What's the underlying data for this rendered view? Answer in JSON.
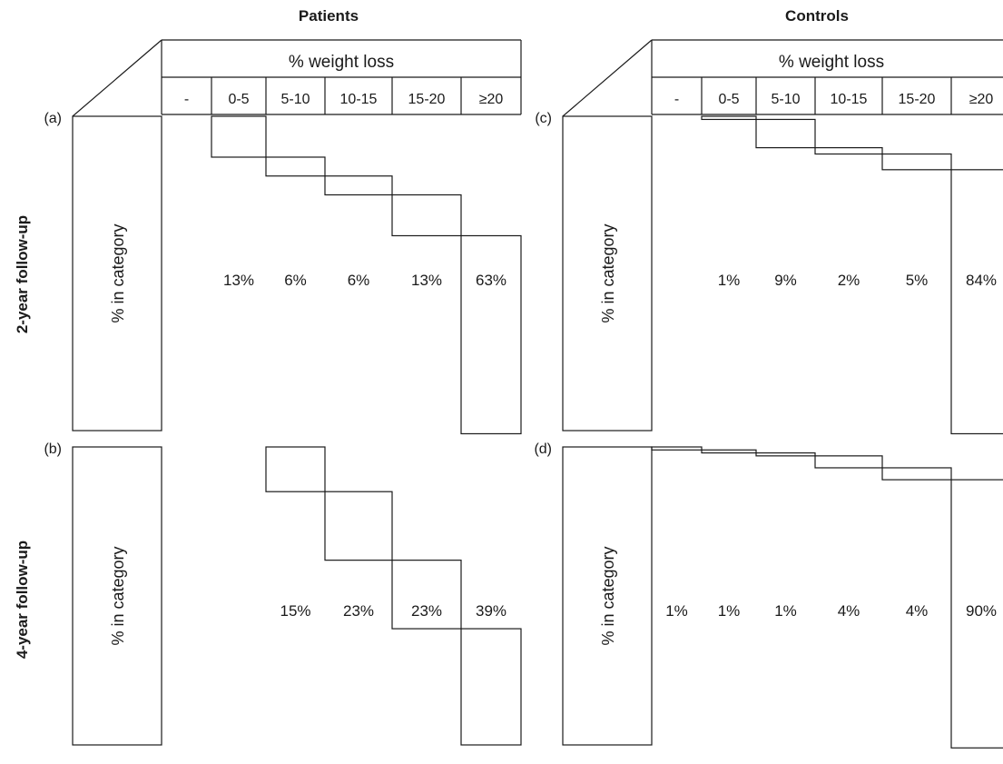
{
  "column_titles": [
    "Patients",
    "Controls"
  ],
  "row_titles": [
    "2-year follow-up",
    "4-year follow-up"
  ],
  "header_title": "% weight loss",
  "y_axis_label": "% in category",
  "chart_data": [
    {
      "type": "bar",
      "panel": "(a)",
      "group": "Patients",
      "follow_up": "2-year follow-up",
      "categories": [
        "-",
        "0-5",
        "5-10",
        "10-15",
        "15-20",
        "≥20"
      ],
      "values": [
        0,
        13,
        6,
        6,
        13,
        63
      ],
      "value_labels": [
        "",
        "13%",
        "6%",
        "6%",
        "13%",
        "63%"
      ],
      "xlabel": "% weight loss",
      "ylabel": "% in category",
      "ylim": [
        0,
        100
      ],
      "display": "cumulative step"
    },
    {
      "type": "bar",
      "panel": "(b)",
      "group": "Patients",
      "follow_up": "4-year follow-up",
      "categories": [
        "-",
        "0-5",
        "5-10",
        "10-15",
        "15-20",
        "≥20"
      ],
      "values": [
        0,
        0,
        15,
        23,
        23,
        39
      ],
      "value_labels": [
        "",
        "",
        "15%",
        "23%",
        "23%",
        "39%"
      ],
      "xlabel": "% weight loss",
      "ylabel": "% in category",
      "ylim": [
        0,
        100
      ],
      "display": "cumulative step"
    },
    {
      "type": "bar",
      "panel": "(c)",
      "group": "Controls",
      "follow_up": "2-year follow-up",
      "categories": [
        "-",
        "0-5",
        "5-10",
        "10-15",
        "15-20",
        "≥20"
      ],
      "values": [
        0,
        1,
        9,
        2,
        5,
        84
      ],
      "value_labels": [
        "",
        "1%",
        "9%",
        "2%",
        "5%",
        "84%"
      ],
      "xlabel": "% weight loss",
      "ylabel": "% in category",
      "ylim": [
        0,
        100
      ],
      "display": "cumulative step"
    },
    {
      "type": "bar",
      "panel": "(d)",
      "group": "Controls",
      "follow_up": "4-year follow-up",
      "categories": [
        "-",
        "0-5",
        "5-10",
        "10-15",
        "15-20",
        "≥20"
      ],
      "values": [
        1,
        1,
        1,
        4,
        4,
        90
      ],
      "value_labels": [
        "1%",
        "1%",
        "1%",
        "4%",
        "4%",
        "90%"
      ],
      "xlabel": "% weight loss",
      "ylabel": "% in category",
      "ylim": [
        0,
        100
      ],
      "display": "cumulative step"
    }
  ]
}
